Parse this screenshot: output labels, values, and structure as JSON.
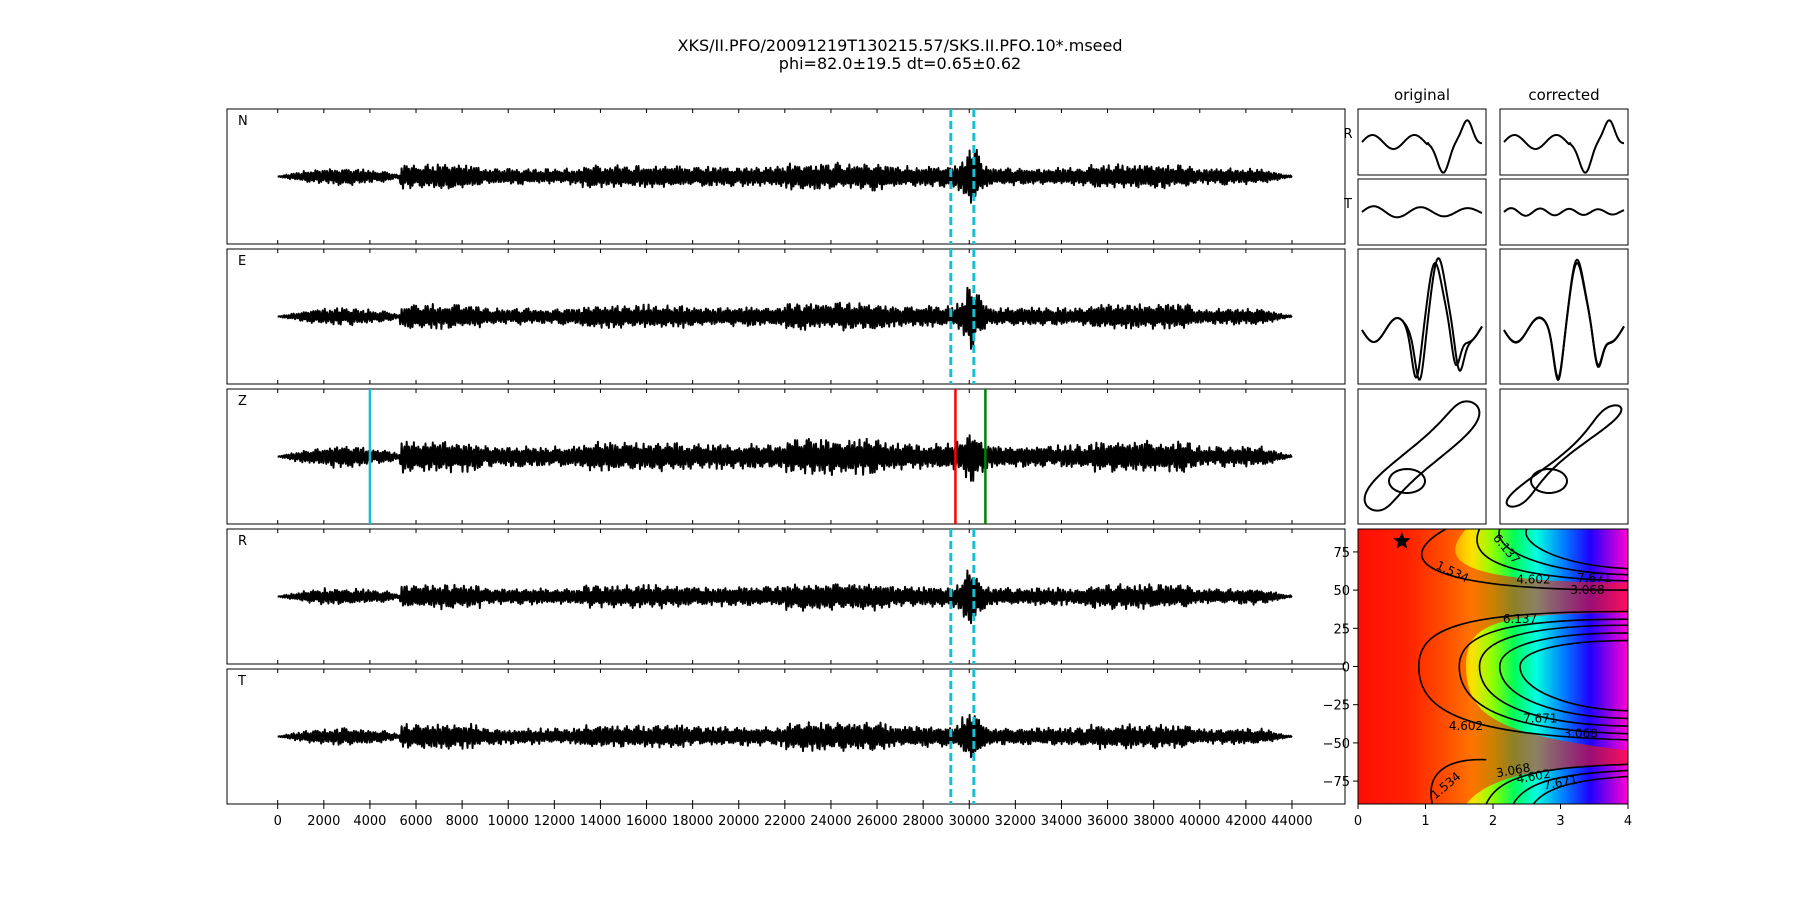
{
  "figure": {
    "title_line1": "XKS/II.PFO/20091219T130215.57/SKS.II.PFO.10*.mseed",
    "title_line2": "phi=82.0±19.5 dt=0.65±0.62"
  },
  "chart_data": [
    {
      "type": "line",
      "name": "seismogram-panels",
      "panels": [
        "N",
        "E",
        "Z",
        "R",
        "T"
      ],
      "xlim": [
        -2200,
        46300
      ],
      "data_range": [
        0,
        44000
      ],
      "xticks": [
        0,
        2000,
        4000,
        6000,
        8000,
        10000,
        12000,
        14000,
        16000,
        18000,
        20000,
        22000,
        24000,
        26000,
        28000,
        30000,
        32000,
        34000,
        36000,
        38000,
        40000,
        42000,
        44000
      ],
      "window_lines": {
        "x": [
          29200,
          30200
        ],
        "color": "#17becf",
        "style": "dashed",
        "panels": [
          "N",
          "E",
          "R",
          "T"
        ]
      },
      "phase_markers": [
        {
          "x": 4000,
          "color": "#17becf",
          "panel": "Z"
        },
        {
          "x": 29400,
          "color": "#ff0000",
          "panel": "Z"
        },
        {
          "x": 30700,
          "color": "#008000",
          "panel": "Z"
        }
      ],
      "trace_color": "#000000"
    },
    {
      "type": "line",
      "name": "particle-panels",
      "columns": [
        "original",
        "corrected"
      ],
      "rows": [
        "R",
        "T",
        "overlay",
        "particle-motion"
      ],
      "overlay_colors": [
        "#000000",
        "#ff0000"
      ]
    },
    {
      "type": "heatmap",
      "name": "error-surface",
      "xlim": [
        0,
        4
      ],
      "ylim": [
        -90,
        90
      ],
      "xticks": [
        0,
        1,
        2,
        3,
        4
      ],
      "yticks": [
        -75,
        -50,
        -25,
        0,
        25,
        50,
        75
      ],
      "colormap": "gist_rainbow",
      "best": {
        "dt": 0.65,
        "phi": 82.0
      },
      "contour_labels": [
        "1.534",
        "3.068",
        "4.602",
        "6.137",
        "7.671"
      ]
    }
  ]
}
